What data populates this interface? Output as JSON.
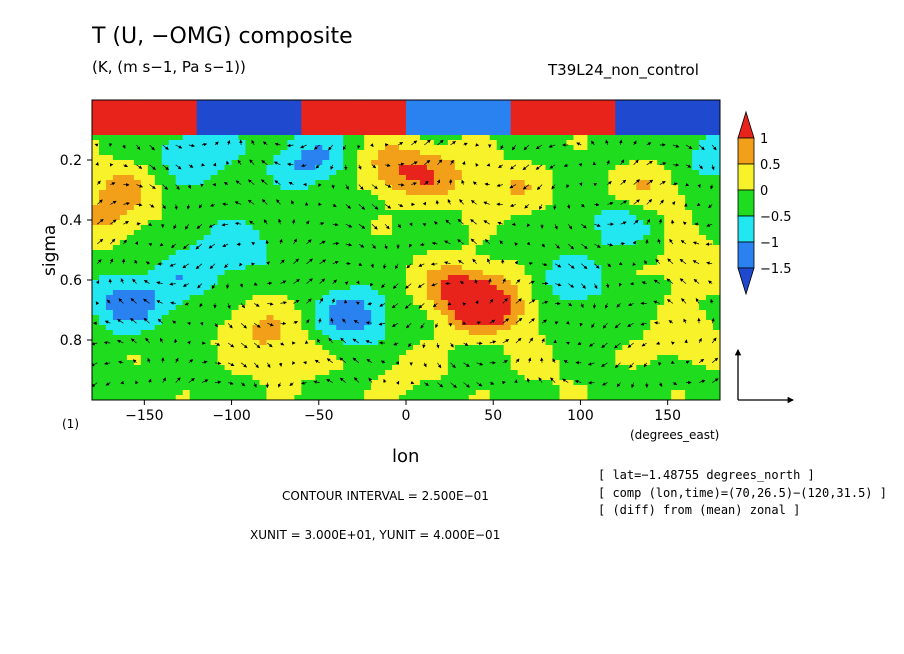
{
  "title": "T (U, −OMG) composite",
  "subtitle": "(K, (m s−1, Pa s−1))",
  "experiment": "T39L24_non_control",
  "panel_label": "(1)",
  "lon_unit_label": "(degrees_east)",
  "colors": {
    "red": "#e8231c",
    "orange": "#f2a019",
    "yellow": "#f7f22a",
    "green": "#1fdc1f",
    "cyan": "#22e6f0",
    "blue": "#2a82f0",
    "deepblue": "#1f4ad0"
  },
  "info": {
    "lat": "[ lat=−1.48755 degrees_north ]",
    "comp": "[ comp (lon,time)=(70,26.5)−(120,31.5) ]",
    "diff": "[ (diff) from (mean) zonal ]"
  },
  "contour_interval": "CONTOUR INTERVAL = 2.500E−01",
  "units": "XUNIT = 3.000E+01, YUNIT = 4.000E−01",
  "chart_data": {
    "type": "heatmap",
    "title": "T (U, −OMG) composite",
    "subtitle": "(K, (m s−1, Pa s−1))",
    "xlabel": "lon",
    "ylabel": "sigma",
    "xlim": [
      -180,
      180
    ],
    "ylim": [
      1.0,
      0.0
    ],
    "x_ticks": [
      -150,
      -100,
      -50,
      0,
      50,
      100,
      150
    ],
    "y_ticks": [
      0.2,
      0.4,
      0.6,
      0.8
    ],
    "colorbar": {
      "ticks": [
        1,
        0.5,
        0,
        -0.5,
        -1,
        -1.5
      ],
      "bins": [
        {
          "range": [
            1.0,
            null
          ],
          "color": "#e8231c"
        },
        {
          "range": [
            0.5,
            1.0
          ],
          "color": "#f2a019"
        },
        {
          "range": [
            0.0,
            0.5
          ],
          "color": "#f7f22a"
        },
        {
          "range": [
            -0.5,
            0.0
          ],
          "color": "#1fdc1f"
        },
        {
          "range": [
            -1.0,
            -0.5
          ],
          "color": "#22e6f0"
        },
        {
          "range": [
            -1.5,
            -1.0
          ],
          "color": "#2a82f0"
        },
        {
          "range": [
            null,
            -1.5
          ],
          "color": "#1f4ad0"
        }
      ]
    },
    "contour_labels": [
      "0.00",
      "0.500"
    ],
    "vector_reference": {
      "xunit": 30.0,
      "yunit": 0.4
    },
    "anomalies": [
      {
        "lon": 40,
        "sigma": 0.68,
        "value": 1.2
      },
      {
        "lon": 30,
        "sigma": 0.62,
        "value": 0.9
      },
      {
        "lon": 55,
        "sigma": 0.7,
        "value": 0.7
      },
      {
        "lon": -5,
        "sigma": 0.23,
        "value": 1.0
      },
      {
        "lon": 20,
        "sigma": 0.25,
        "value": 0.7
      },
      {
        "lon": 60,
        "sigma": 0.3,
        "value": 0.6
      },
      {
        "lon": -165,
        "sigma": 0.3,
        "value": 0.7
      },
      {
        "lon": -170,
        "sigma": 0.4,
        "value": 0.5
      },
      {
        "lon": -85,
        "sigma": 0.75,
        "value": 0.6
      },
      {
        "lon": -70,
        "sigma": 0.85,
        "value": 0.5
      },
      {
        "lon": 140,
        "sigma": 0.3,
        "value": 0.7
      },
      {
        "lon": 165,
        "sigma": 0.55,
        "value": 0.6
      },
      {
        "lon": 160,
        "sigma": 0.8,
        "value": 0.5
      },
      {
        "lon": 110,
        "sigma": 0.45,
        "value": 0.3
      },
      {
        "lon": -160,
        "sigma": 0.68,
        "value": -1.1
      },
      {
        "lon": -30,
        "sigma": 0.72,
        "value": -1.2
      },
      {
        "lon": -55,
        "sigma": 0.2,
        "value": -1.0
      },
      {
        "lon": -120,
        "sigma": 0.18,
        "value": -0.9
      },
      {
        "lon": -100,
        "sigma": 0.5,
        "value": -0.8
      },
      {
        "lon": 120,
        "sigma": 0.42,
        "value": -0.9
      },
      {
        "lon": 95,
        "sigma": 0.6,
        "value": -0.7
      },
      {
        "lon": 175,
        "sigma": 0.2,
        "value": -0.6
      },
      {
        "lon": -130,
        "sigma": 0.6,
        "value": -0.6
      },
      {
        "lon": 0,
        "sigma": 0.9,
        "value": 0.3
      },
      {
        "lon": 80,
        "sigma": 0.9,
        "value": 0.2
      }
    ],
    "top_layer": {
      "sigma_max": 0.12,
      "values": [
        1.3,
        -1.6,
        1.2,
        -1.4,
        1.1,
        -1.7
      ]
    }
  }
}
